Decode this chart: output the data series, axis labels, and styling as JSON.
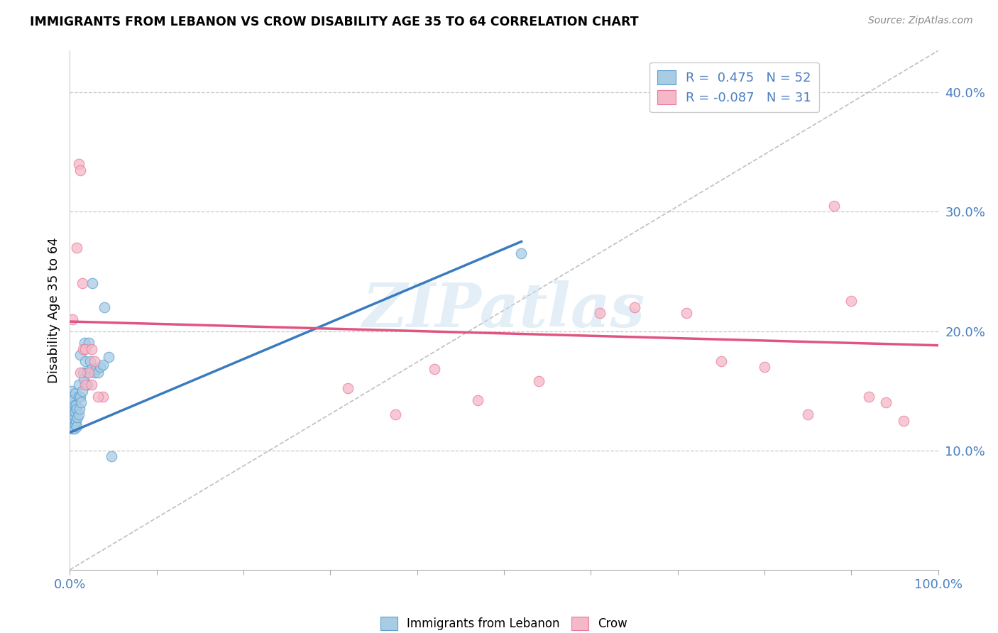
{
  "title": "IMMIGRANTS FROM LEBANON VS CROW DISABILITY AGE 35 TO 64 CORRELATION CHART",
  "source": "Source: ZipAtlas.com",
  "ylabel": "Disability Age 35 to 64",
  "ytick_vals": [
    0.1,
    0.2,
    0.3,
    0.4
  ],
  "ytick_labels": [
    "10.0%",
    "20.0%",
    "30.0%",
    "40.0%"
  ],
  "xlim": [
    0.0,
    1.0
  ],
  "ylim": [
    0.0,
    0.435
  ],
  "legend_r1": "R =  0.475",
  "legend_n1": "N = 52",
  "legend_r2": "R = -0.087",
  "legend_n2": "N = 31",
  "color_blue_fill": "#a8cce4",
  "color_pink_fill": "#f5b8c8",
  "color_blue_edge": "#5b9ecf",
  "color_pink_edge": "#e8789a",
  "color_blue_line": "#3a7bbf",
  "color_pink_line": "#e05580",
  "color_dashed": "#b0b0b0",
  "color_tick": "#4a7fc1",
  "watermark_color": "#c8dff0",
  "legend_label1": "Immigrants from Lebanon",
  "legend_label2": "Crow",
  "blue_scatter_x": [
    0.001,
    0.001,
    0.001,
    0.002,
    0.002,
    0.002,
    0.002,
    0.003,
    0.003,
    0.003,
    0.003,
    0.004,
    0.004,
    0.004,
    0.005,
    0.005,
    0.005,
    0.006,
    0.006,
    0.006,
    0.007,
    0.007,
    0.008,
    0.008,
    0.009,
    0.01,
    0.01,
    0.01,
    0.011,
    0.012,
    0.012,
    0.013,
    0.014,
    0.015,
    0.016,
    0.017,
    0.018,
    0.02,
    0.02,
    0.022,
    0.023,
    0.025,
    0.026,
    0.028,
    0.03,
    0.032,
    0.035,
    0.038,
    0.04,
    0.045,
    0.048,
    0.52
  ],
  "blue_scatter_y": [
    0.125,
    0.13,
    0.135,
    0.12,
    0.128,
    0.14,
    0.15,
    0.118,
    0.125,
    0.132,
    0.145,
    0.12,
    0.13,
    0.142,
    0.118,
    0.128,
    0.138,
    0.122,
    0.132,
    0.148,
    0.125,
    0.138,
    0.12,
    0.135,
    0.128,
    0.13,
    0.145,
    0.155,
    0.135,
    0.18,
    0.145,
    0.14,
    0.15,
    0.165,
    0.16,
    0.19,
    0.175,
    0.155,
    0.165,
    0.19,
    0.175,
    0.168,
    0.24,
    0.165,
    0.168,
    0.165,
    0.17,
    0.172,
    0.22,
    0.178,
    0.095,
    0.265
  ],
  "pink_scatter_x": [
    0.003,
    0.008,
    0.01,
    0.012,
    0.014,
    0.015,
    0.018,
    0.022,
    0.025,
    0.038,
    0.32,
    0.375,
    0.42,
    0.47,
    0.54,
    0.61,
    0.65,
    0.71,
    0.75,
    0.8,
    0.85,
    0.88,
    0.9,
    0.92,
    0.94,
    0.96,
    0.012,
    0.018,
    0.025,
    0.028,
    0.032
  ],
  "pink_scatter_y": [
    0.21,
    0.27,
    0.34,
    0.335,
    0.24,
    0.185,
    0.185,
    0.165,
    0.185,
    0.145,
    0.152,
    0.13,
    0.168,
    0.142,
    0.158,
    0.215,
    0.22,
    0.215,
    0.175,
    0.17,
    0.13,
    0.305,
    0.225,
    0.145,
    0.14,
    0.125,
    0.165,
    0.155,
    0.155,
    0.175,
    0.145
  ],
  "blue_line_x": [
    0.0,
    0.52
  ],
  "blue_line_y": [
    0.115,
    0.275
  ],
  "pink_line_x": [
    0.0,
    1.0
  ],
  "pink_line_y": [
    0.208,
    0.188
  ],
  "dashed_line_x": [
    0.0,
    1.0
  ],
  "dashed_line_y": [
    0.0,
    0.435
  ],
  "xtick_positions": [
    0.0,
    0.1,
    0.2,
    0.3,
    0.4,
    0.5,
    0.6,
    0.7,
    0.8,
    0.9,
    1.0
  ]
}
